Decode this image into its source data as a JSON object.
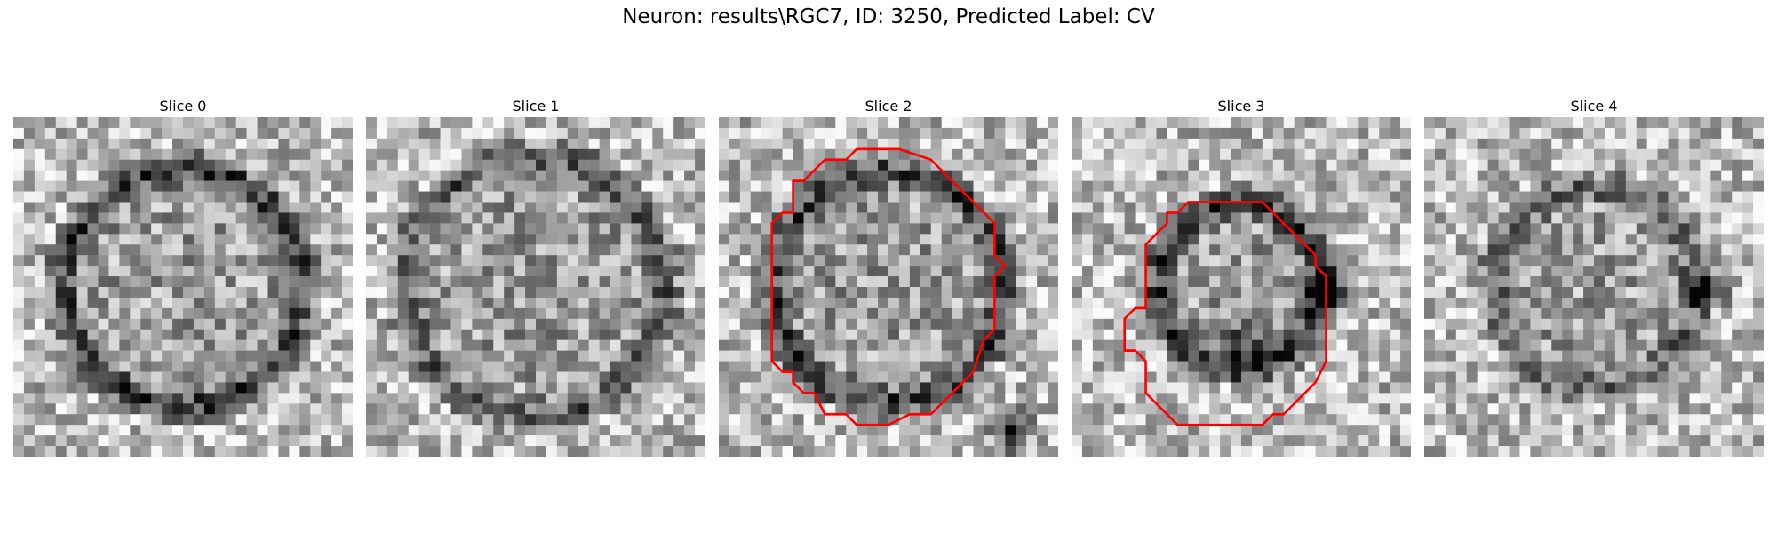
{
  "figure": {
    "title": "Neuron: results\\RGC7, ID: 3250, Predicted Label: CV"
  },
  "panels": [
    {
      "title": "Slice 0",
      "has_contour": false
    },
    {
      "title": "Slice 1",
      "has_contour": false
    },
    {
      "title": "Slice 2",
      "has_contour": true
    },
    {
      "title": "Slice 3",
      "has_contour": true
    },
    {
      "title": "Slice 4",
      "has_contour": false
    }
  ],
  "colors": {
    "contour": "#ff0000",
    "colormap": "gray"
  }
}
